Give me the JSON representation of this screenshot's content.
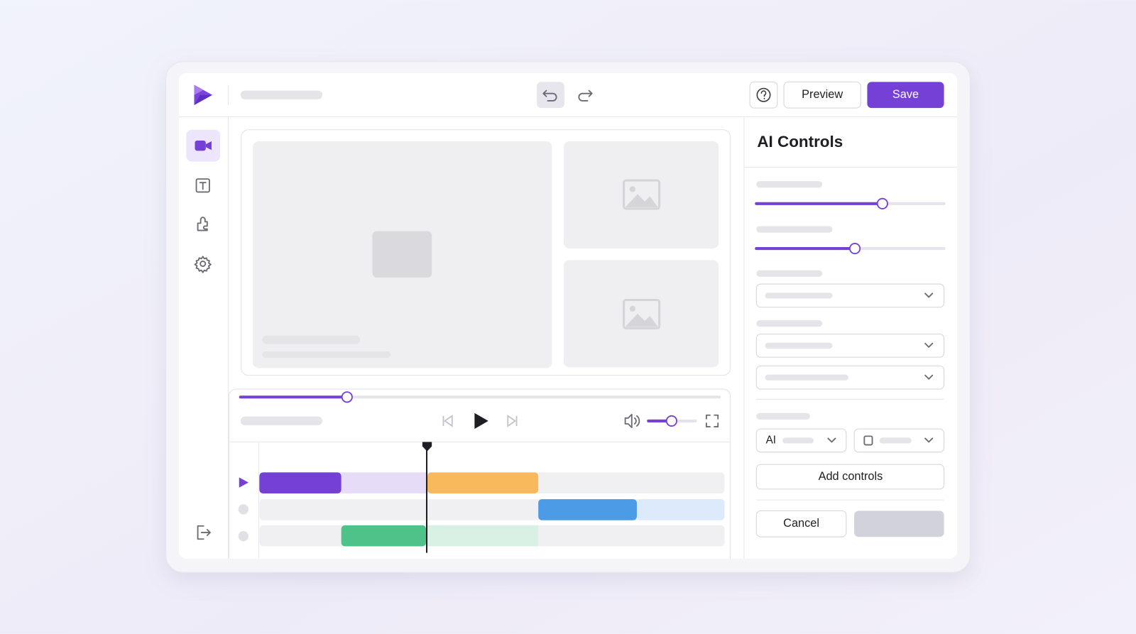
{
  "toolbar": {
    "preview": "Preview",
    "save": "Save"
  },
  "panel": {
    "title": "AI Controls",
    "model_select": "AI",
    "add": "Add controls",
    "cancel": "Cancel"
  }
}
